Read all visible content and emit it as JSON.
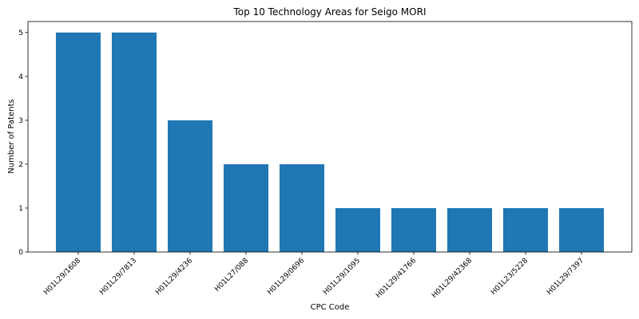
{
  "chart_data": {
    "type": "bar",
    "title": "Top 10 Technology Areas for Seigo MORI",
    "xlabel": "CPC Code",
    "ylabel": "Number of Patents",
    "categories": [
      "H01L29/1608",
      "H01L29/7813",
      "H01L29/4236",
      "H01L27/088",
      "H01L29/0696",
      "H01L29/1095",
      "H01L29/41766",
      "H01L29/42368",
      "H01L23/5228",
      "H01L29/7397"
    ],
    "values": [
      5,
      5,
      3,
      2,
      2,
      1,
      1,
      1,
      1,
      1
    ],
    "ylim": [
      0,
      5.25
    ],
    "yticks": [
      0,
      1,
      2,
      3,
      4,
      5
    ],
    "bar_color": "#1f77b4",
    "grid": false
  }
}
